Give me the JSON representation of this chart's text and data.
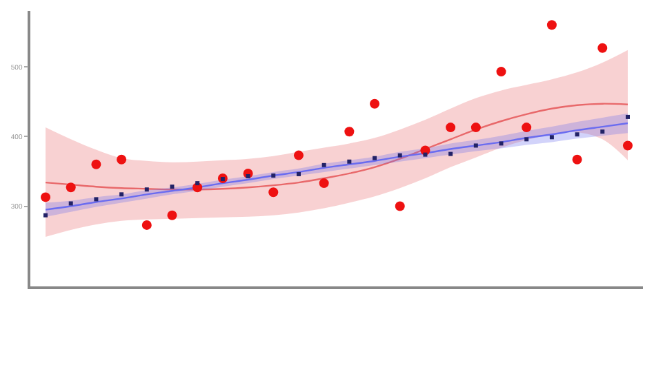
{
  "chart_data": {
    "type": "scatter",
    "categories": [
      null,
      null,
      null,
      null,
      null,
      null,
      null,
      null,
      null,
      null,
      null,
      null,
      null,
      null,
      null,
      null,
      null,
      null,
      null,
      null,
      null,
      null,
      null,
      null
    ],
    "series": [
      {
        "type": "line",
        "color": "#e8686a",
        "values": [
          334,
          331,
          328,
          326,
          325,
          324,
          324,
          325,
          327,
          330,
          334,
          340,
          347,
          356,
          368,
          382,
          396,
          410,
          422,
          432,
          440,
          445,
          447,
          446
        ],
        "lower": [
          256,
          266,
          274,
          279,
          281,
          282,
          283,
          284,
          285,
          287,
          291,
          297,
          305,
          314,
          326,
          340,
          356,
          370,
          384,
          395,
          403,
          406,
          396,
          366
        ],
        "upper": [
          413,
          396,
          381,
          369,
          365,
          363,
          364,
          366,
          368,
          372,
          378,
          384,
          390,
          398,
          410,
          424,
          440,
          455,
          466,
          474,
          482,
          492,
          506,
          524
        ]
      },
      {
        "type": "line",
        "color": "#6a6cf0",
        "values": [
          295,
          300,
          306,
          311,
          317,
          322,
          327,
          333,
          338,
          344,
          349,
          355,
          360,
          365,
          371,
          376,
          382,
          387,
          392,
          398,
          403,
          409,
          414,
          419
        ],
        "lower": [
          285,
          292,
          299,
          305,
          311,
          317,
          322,
          328,
          333,
          339,
          344,
          349,
          354,
          359,
          364,
          369,
          374,
          379,
          383,
          388,
          392,
          397,
          401,
          405
        ],
        "upper": [
          305,
          308,
          313,
          317,
          323,
          327,
          332,
          338,
          343,
          349,
          354,
          361,
          366,
          371,
          378,
          383,
          390,
          395,
          401,
          408,
          414,
          421,
          427,
          433
        ]
      },
      {
        "color": "#ee1111",
        "marker": "circle",
        "values": [
          313,
          327,
          360,
          367,
          273,
          287,
          327,
          340,
          347,
          320,
          373,
          333,
          407,
          447,
          300,
          380,
          413,
          413,
          493,
          413,
          560,
          367,
          527,
          387
        ]
      },
      {
        "color": "#222266",
        "marker": "square",
        "values": [
          287,
          304,
          310,
          317,
          324,
          328,
          333,
          339,
          343,
          344,
          346,
          359,
          364,
          369,
          373,
          374,
          375,
          387,
          390,
          396,
          399,
          403,
          407,
          428
        ]
      }
    ],
    "ylim": [
      185,
      580
    ],
    "yticks": [
      300,
      400,
      500
    ]
  }
}
